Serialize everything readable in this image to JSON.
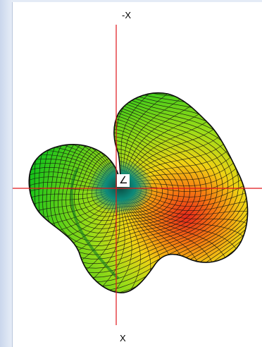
{
  "axes": {
    "top_label": "-X",
    "bottom_label": "X",
    "center_symbol": "∠",
    "axis_color": "#e0151a"
  },
  "surface": {
    "mesh_color": "#101010",
    "gradient_colors": [
      "#12c31a",
      "#9cdc18",
      "#f0d214",
      "#f57a12",
      "#e8281a"
    ],
    "throat_color": "#0d8a7a"
  }
}
